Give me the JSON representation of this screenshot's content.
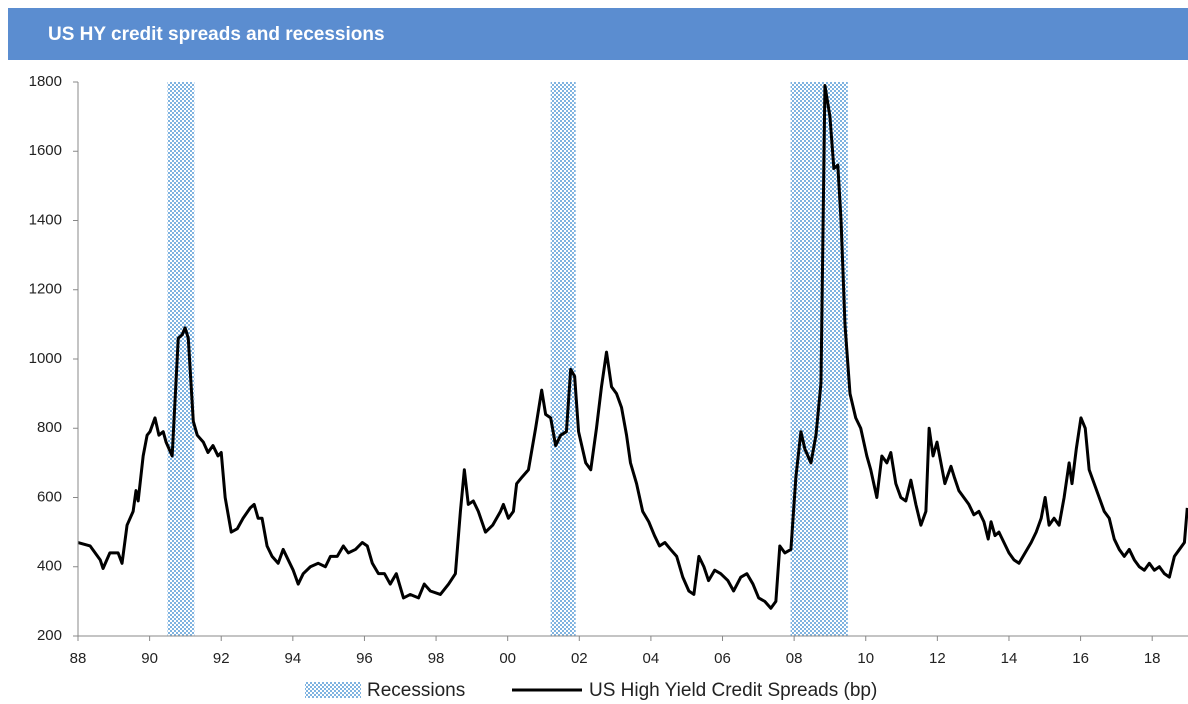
{
  "chart_data": {
    "type": "line",
    "title": "US HY credit spreads and recessions",
    "xlim": [
      1988,
      2019
    ],
    "xticks": [
      {
        "value": 1988,
        "label": "88"
      },
      {
        "value": 1990,
        "label": "90"
      },
      {
        "value": 1992,
        "label": "92"
      },
      {
        "value": 1994,
        "label": "94"
      },
      {
        "value": 1996,
        "label": "96"
      },
      {
        "value": 1998,
        "label": "98"
      },
      {
        "value": 2000,
        "label": "00"
      },
      {
        "value": 2002,
        "label": "02"
      },
      {
        "value": 2004,
        "label": "04"
      },
      {
        "value": 2006,
        "label": "06"
      },
      {
        "value": 2008,
        "label": "08"
      },
      {
        "value": 2010,
        "label": "10"
      },
      {
        "value": 2012,
        "label": "12"
      },
      {
        "value": 2014,
        "label": "14"
      },
      {
        "value": 2016,
        "label": "16"
      },
      {
        "value": 2018,
        "label": "18"
      }
    ],
    "ylim": [
      200,
      1800
    ],
    "yticks": [
      200,
      400,
      600,
      800,
      1000,
      1200,
      1400,
      1600,
      1800
    ],
    "grid": false,
    "recessions": {
      "name": "Recessions",
      "color": "#7fb3e0",
      "periods": [
        [
          1990.5,
          1991.25
        ],
        [
          2001.2,
          2001.9
        ],
        [
          2007.9,
          2009.5
        ]
      ]
    },
    "x": [
      1988.0,
      1988.34,
      1988.62,
      1988.7,
      1988.89,
      1989.12,
      1989.23,
      1989.37,
      1989.54,
      1989.62,
      1989.68,
      1989.82,
      1989.93,
      1990.01,
      1990.15,
      1990.26,
      1990.38,
      1990.46,
      1990.63,
      1990.71,
      1990.8,
      1990.91,
      1990.99,
      1991.08,
      1991.22,
      1991.33,
      1991.5,
      1991.63,
      1991.77,
      1991.91,
      1992.0,
      1992.11,
      1992.28,
      1992.45,
      1992.61,
      1992.81,
      1992.92,
      1993.03,
      1993.14,
      1993.28,
      1993.42,
      1993.59,
      1993.73,
      1993.87,
      1994.01,
      1994.15,
      1994.29,
      1994.49,
      1994.71,
      1994.91,
      1995.05,
      1995.24,
      1995.41,
      1995.55,
      1995.75,
      1995.94,
      1996.08,
      1996.22,
      1996.39,
      1996.56,
      1996.72,
      1996.89,
      1997.09,
      1997.28,
      1997.51,
      1997.67,
      1997.84,
      1998.12,
      1998.35,
      1998.54,
      1998.68,
      1998.79,
      1998.9,
      1999.04,
      1999.18,
      1999.38,
      1999.58,
      1999.8,
      1999.88,
      2000.02,
      2000.16,
      2000.25,
      2000.41,
      2000.58,
      2000.78,
      2000.95,
      2001.06,
      2001.2,
      2001.34,
      2001.48,
      2001.64,
      2001.76,
      2001.87,
      2001.98,
      2002.18,
      2002.32,
      2002.48,
      2002.62,
      2002.76,
      2002.9,
      2003.04,
      2003.18,
      2003.32,
      2003.43,
      2003.6,
      2003.77,
      2003.94,
      2004.1,
      2004.24,
      2004.39,
      2004.55,
      2004.72,
      2004.89,
      2005.06,
      2005.2,
      2005.34,
      2005.48,
      2005.61,
      2005.78,
      2005.95,
      2006.15,
      2006.31,
      2006.51,
      2006.68,
      2006.85,
      2007.01,
      2007.18,
      2007.35,
      2007.49,
      2007.6,
      2007.74,
      2007.91,
      2008.05,
      2008.19,
      2008.3,
      2008.47,
      2008.61,
      2008.75,
      2008.86,
      2009.0,
      2009.11,
      2009.22,
      2009.31,
      2009.42,
      2009.56,
      2009.72,
      2009.86,
      2010.03,
      2010.14,
      2010.31,
      2010.45,
      2010.59,
      2010.7,
      2010.84,
      2010.98,
      2011.12,
      2011.26,
      2011.4,
      2011.54,
      2011.68,
      2011.77,
      2011.88,
      2011.99,
      2012.1,
      2012.21,
      2012.38,
      2012.47,
      2012.6,
      2012.74,
      2012.88,
      2013.02,
      2013.16,
      2013.3,
      2013.42,
      2013.5,
      2013.61,
      2013.72,
      2013.86,
      2014.0,
      2014.14,
      2014.28,
      2014.45,
      2014.62,
      2014.76,
      2014.9,
      2015.01,
      2015.12,
      2015.26,
      2015.4,
      2015.54,
      2015.68,
      2015.76,
      2015.88,
      2016.01,
      2016.13,
      2016.24,
      2016.38,
      2016.52,
      2016.66,
      2016.8,
      2016.94,
      2017.08,
      2017.22,
      2017.36,
      2017.5,
      2017.64,
      2017.78,
      2017.92,
      2018.06,
      2018.2,
      2018.34,
      2018.48,
      2018.62,
      2018.76,
      2018.9,
      2018.98
    ],
    "series": [
      {
        "name": "US High Yield Credit Spreads  (bp)",
        "color": "#000000",
        "values": [
          470,
          460,
          420,
          395,
          440,
          440,
          410,
          520,
          560,
          620,
          590,
          720,
          780,
          790,
          830,
          780,
          790,
          760,
          720,
          880,
          1060,
          1070,
          1090,
          1060,
          820,
          780,
          760,
          730,
          750,
          720,
          730,
          600,
          500,
          510,
          540,
          570,
          580,
          540,
          540,
          460,
          430,
          410,
          450,
          420,
          390,
          350,
          380,
          400,
          410,
          400,
          430,
          430,
          460,
          440,
          450,
          470,
          460,
          410,
          380,
          380,
          350,
          380,
          310,
          320,
          310,
          350,
          330,
          320,
          350,
          380,
          560,
          680,
          580,
          590,
          560,
          500,
          520,
          560,
          580,
          540,
          560,
          640,
          660,
          680,
          800,
          910,
          840,
          830,
          750,
          780,
          790,
          970,
          950,
          790,
          700,
          680,
          800,
          920,
          1020,
          920,
          900,
          860,
          780,
          700,
          640,
          560,
          530,
          490,
          460,
          470,
          450,
          430,
          370,
          330,
          320,
          430,
          400,
          360,
          390,
          380,
          360,
          330,
          370,
          380,
          350,
          310,
          300,
          280,
          300,
          460,
          440,
          450,
          660,
          790,
          740,
          700,
          780,
          930,
          1790,
          1700,
          1550,
          1560,
          1400,
          1100,
          900,
          830,
          800,
          720,
          680,
          600,
          720,
          700,
          730,
          640,
          600,
          590,
          650,
          580,
          520,
          560,
          800,
          720,
          760,
          700,
          640,
          690,
          660,
          620,
          600,
          580,
          550,
          560,
          530,
          480,
          530,
          490,
          500,
          470,
          440,
          420,
          410,
          440,
          470,
          500,
          540,
          600,
          520,
          540,
          520,
          600,
          700,
          640,
          740,
          830,
          800,
          680,
          640,
          600,
          560,
          540,
          480,
          450,
          430,
          450,
          420,
          400,
          390,
          410,
          390,
          400,
          380,
          370,
          430,
          450,
          470,
          570
        ]
      }
    ]
  }
}
